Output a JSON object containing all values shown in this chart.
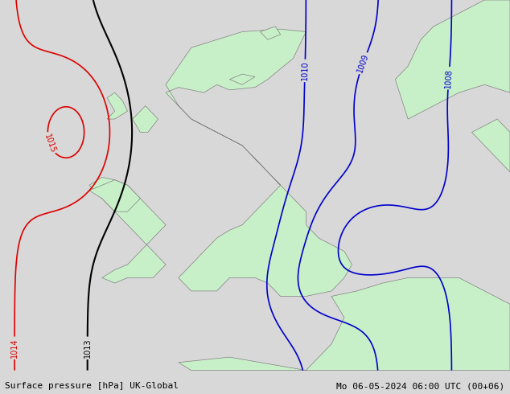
{
  "title_left": "Surface pressure [hPa] UK-Global",
  "title_right": "Mo 06-05-2024 06:00 UTC (00+06)",
  "bg_color": "#d8d8d8",
  "land_color": "#c8f0c8",
  "sea_color": "#d8d8d8",
  "contour_colors": {
    "1005": "#0000ff",
    "1006": "#0000ff",
    "1007": "#0000ff",
    "1008": "#0000ff",
    "1009": "#0000ff",
    "1010": "#0000ff",
    "1013": "#000000",
    "1014": "#ff0000",
    "1015": "#ff0000",
    "1016": "#ff0000"
  },
  "figsize": [
    6.34,
    4.9
  ],
  "dpi": 100
}
